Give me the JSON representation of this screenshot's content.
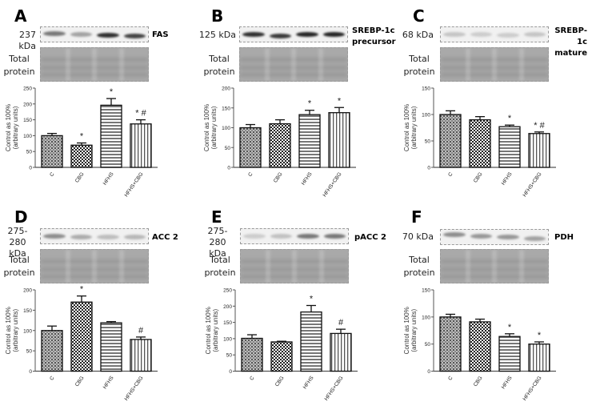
{
  "figure": {
    "y_axis_label_line1": "Control as 100%",
    "y_axis_label_line2": "(arbitrary units)",
    "total_protein_label_line1": "Total",
    "total_protein_label_line2": "protein"
  },
  "panels": [
    {
      "letter": "A",
      "kda_line1": "237 kDa",
      "kda_line2": "",
      "protein_line1": "FAS",
      "protein_line2": ""
    },
    {
      "letter": "B",
      "kda_line1": "125 kDa",
      "kda_line2": "",
      "protein_line1": "SREBP-1c",
      "protein_line2": "precursor"
    },
    {
      "letter": "C",
      "kda_line1": "68 kDa",
      "kda_line2": "",
      "protein_line1": "SREBP-1c",
      "protein_line2": "mature"
    },
    {
      "letter": "D",
      "kda_line1": "275-280",
      "kda_line2": "kDa",
      "protein_line1": "ACC 2",
      "protein_line2": ""
    },
    {
      "letter": "E",
      "kda_line1": "275-280",
      "kda_line2": "kDa",
      "protein_line1": "pACC 2",
      "protein_line2": ""
    },
    {
      "letter": "F",
      "kda_line1": "70 kDa",
      "kda_line2": "",
      "protein_line1": "PDH",
      "protein_line2": ""
    }
  ],
  "chart_data": [
    {
      "panel": "A",
      "title": "FAS",
      "type": "bar",
      "categories": [
        "C",
        "CBG",
        "HFHS",
        "HFHS+CBG"
      ],
      "values": [
        100,
        70,
        196,
        137
      ],
      "errors": [
        7,
        7,
        21,
        13
      ],
      "annotations": [
        "",
        "*",
        "*",
        "* #"
      ],
      "ylabel": "Control as 100% (arbitrary units)",
      "ylim": [
        0,
        250
      ],
      "yticks": [
        0,
        50,
        100,
        150,
        200,
        250
      ],
      "grid": false,
      "legend": "none"
    },
    {
      "panel": "B",
      "title": "SREBP-1c precursor",
      "type": "bar",
      "categories": [
        "C",
        "CBG",
        "HFHS",
        "HFHS+CBG"
      ],
      "values": [
        100,
        110,
        133,
        138
      ],
      "errors": [
        8,
        10,
        11,
        13
      ],
      "annotations": [
        "",
        "",
        "*",
        "*"
      ],
      "ylabel": "Control as 100% (arbitrary units)",
      "ylim": [
        0,
        200
      ],
      "yticks": [
        0,
        50,
        100,
        150,
        200
      ],
      "grid": false,
      "legend": "none"
    },
    {
      "panel": "C",
      "title": "SREBP-1c mature",
      "type": "bar",
      "categories": [
        "C",
        "CBG",
        "HFHS",
        "HFHS+CBG"
      ],
      "values": [
        100,
        90,
        77,
        64
      ],
      "errors": [
        7,
        6,
        3,
        3
      ],
      "annotations": [
        "",
        "",
        "*",
        "* #"
      ],
      "ylabel": "Control as 100% (arbitrary units)",
      "ylim": [
        0,
        150
      ],
      "yticks": [
        0,
        50,
        100,
        150
      ],
      "grid": false,
      "legend": "none"
    },
    {
      "panel": "D",
      "title": "ACC 2",
      "type": "bar",
      "categories": [
        "C",
        "CBG",
        "HFHS",
        "HFHS+CBG"
      ],
      "values": [
        100,
        170,
        119,
        78
      ],
      "errors": [
        11,
        15,
        3,
        6
      ],
      "annotations": [
        "",
        "*",
        "",
        "#"
      ],
      "ylabel": "Control as 100% (arbitrary units)",
      "ylim": [
        0,
        200
      ],
      "yticks": [
        0,
        50,
        100,
        150,
        200
      ],
      "grid": false,
      "legend": "none"
    },
    {
      "panel": "E",
      "title": "pACC 2",
      "type": "bar",
      "categories": [
        "C",
        "CBG",
        "HFHS",
        "HFHS+CBG"
      ],
      "values": [
        101,
        90,
        182,
        116
      ],
      "errors": [
        11,
        2,
        20,
        13
      ],
      "annotations": [
        "",
        "",
        "*",
        "#"
      ],
      "ylabel": "Control as 100% (arbitrary units)",
      "ylim": [
        0,
        250
      ],
      "yticks": [
        0,
        50,
        100,
        150,
        200,
        250
      ],
      "grid": false,
      "legend": "none"
    },
    {
      "panel": "F",
      "title": "PDH",
      "type": "bar",
      "categories": [
        "C",
        "CBG",
        "HFHS",
        "HFHS+CBG"
      ],
      "values": [
        100,
        91,
        64,
        50
      ],
      "errors": [
        5,
        5,
        5,
        4
      ],
      "annotations": [
        "",
        "",
        "*",
        "*"
      ],
      "ylabel": "Control as 100% (arbitrary units)",
      "ylim": [
        0,
        150
      ],
      "yticks": [
        0,
        50,
        100,
        150
      ],
      "grid": false,
      "legend": "none"
    }
  ],
  "blots": [
    {
      "band_intensity": [
        0.55,
        0.35,
        0.9,
        0.8
      ],
      "band_dy": [
        -1,
        0,
        1,
        2
      ]
    },
    {
      "band_intensity": [
        0.9,
        0.85,
        0.95,
        0.95
      ],
      "band_dy": [
        0,
        2,
        0,
        0
      ]
    },
    {
      "band_intensity": [
        0.18,
        0.15,
        0.15,
        0.18
      ],
      "band_dy": [
        0,
        0,
        1,
        0
      ]
    },
    {
      "band_intensity": [
        0.45,
        0.3,
        0.22,
        0.25
      ],
      "band_dy": [
        0,
        1,
        1,
        1
      ]
    },
    {
      "band_intensity": [
        0.15,
        0.2,
        0.55,
        0.55
      ],
      "band_dy": [
        0,
        0,
        0,
        0
      ]
    },
    {
      "band_intensity": [
        0.45,
        0.4,
        0.4,
        0.35
      ],
      "band_dy": [
        -3,
        -1,
        0,
        2
      ]
    }
  ]
}
